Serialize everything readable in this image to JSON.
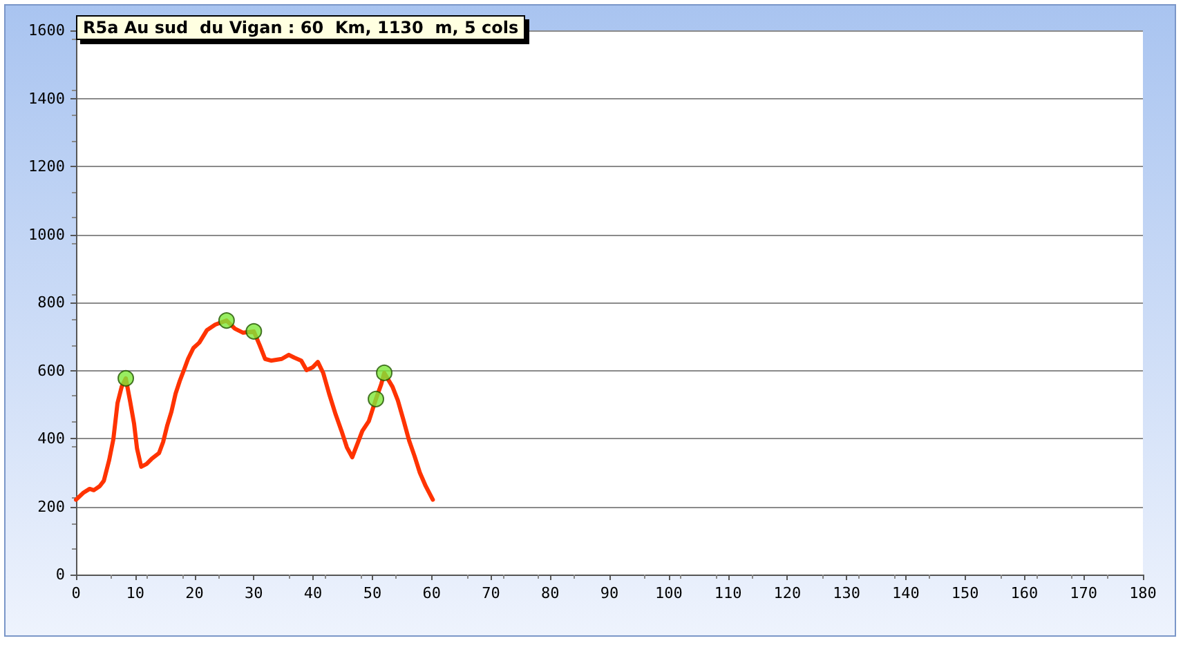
{
  "chart_data": {
    "type": "line",
    "title": "R5a Au sud  du Vigan : 60  Km, 1130  m, 5 cols",
    "xlim": [
      0,
      180
    ],
    "xticks": [
      0,
      10,
      20,
      30,
      40,
      50,
      60,
      70,
      80,
      90,
      100,
      110,
      120,
      130,
      140,
      150,
      160,
      170,
      180
    ],
    "ylim": [
      0,
      1600
    ],
    "yticks": [
      0,
      200,
      400,
      600,
      800,
      1000,
      1200,
      1400,
      1600
    ],
    "grid": "y",
    "series": [
      {
        "color": "#ff3300",
        "marker": "none",
        "line_style": "solid",
        "x": [
          0,
          1.2,
          2.3,
          3,
          4,
          4.7,
          5.6,
          6.3,
          7,
          7.7,
          8.4,
          9.1,
          9.8,
          10.3,
          11,
          11.9,
          12.8,
          14,
          14.7,
          15.4,
          16.1,
          16.8,
          17.5,
          18.2,
          18.9,
          19.8,
          20.8,
          22.1,
          23.5,
          25.4,
          26.8,
          28.2,
          30,
          31,
          31.9,
          32.9,
          34.7,
          35.9,
          36.8,
          38,
          38.9,
          39.9,
          40.8,
          41.7,
          42.7,
          43.8,
          44.8,
          45.7,
          46.6,
          47.6,
          48.3,
          49.4,
          50.6,
          51.5,
          52,
          53.4,
          54.3,
          55.3,
          56.2,
          57.1,
          58,
          59,
          60.2
        ],
        "values": [
          220,
          240,
          252,
          248,
          260,
          276,
          337,
          398,
          504,
          552,
          577,
          512,
          443,
          370,
          317,
          325,
          341,
          357,
          390,
          439,
          479,
          532,
          569,
          601,
          634,
          666,
          682,
          719,
          735,
          747,
          723,
          711,
          715,
          674,
          634,
          629,
          634,
          646,
          638,
          629,
          601,
          609,
          625,
          593,
          532,
          471,
          422,
          374,
          345,
          390,
          422,
          451,
          516,
          560,
          593,
          552,
          512,
          451,
          394,
          349,
          300,
          260,
          220
        ]
      },
      {
        "type": "scatter",
        "color": "#7ee83a",
        "marker": "circle",
        "x": [
          8.4,
          25.4,
          30,
          50.6,
          52
        ],
        "values": [
          577,
          747,
          715,
          516,
          593
        ]
      }
    ]
  }
}
